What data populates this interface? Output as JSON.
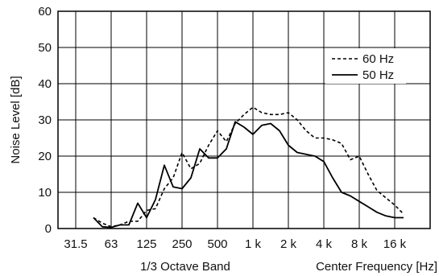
{
  "chart_data": {
    "type": "line",
    "ylabel": "Noise Level [dB]",
    "xlabel_left": "1/3 Octave Band",
    "xlabel_right": "Center Frequency [Hz]",
    "ylim": [
      0,
      60
    ],
    "yticks": [
      0,
      10,
      20,
      30,
      40,
      50,
      60
    ],
    "xlim": [
      0,
      21
    ],
    "xticks": [
      {
        "x": 1,
        "label": "31.5"
      },
      {
        "x": 3,
        "label": "63"
      },
      {
        "x": 5,
        "label": "125"
      },
      {
        "x": 7,
        "label": "250"
      },
      {
        "x": 9,
        "label": "500"
      },
      {
        "x": 11,
        "label": "1 k"
      },
      {
        "x": 13,
        "label": "2 k"
      },
      {
        "x": 15,
        "label": "4 k"
      },
      {
        "x": 17,
        "label": "8 k"
      },
      {
        "x": 19,
        "label": "16 k"
      }
    ],
    "grid": true,
    "legend_position": "top-right",
    "series": [
      {
        "name": "60 Hz",
        "style": "dashed",
        "color": "#000000",
        "x": [
          2,
          2.5,
          3,
          3.5,
          4,
          4.5,
          5,
          5.5,
          6,
          6.5,
          7,
          7.5,
          8,
          8.5,
          9,
          9.5,
          10,
          10.5,
          11,
          11.5,
          12,
          12.5,
          13,
          13.5,
          14,
          14.5,
          15,
          15.5,
          16,
          16.5,
          17,
          17.5,
          18,
          18.5,
          19,
          19.5
        ],
        "values": [
          3,
          1.5,
          0.5,
          1,
          2,
          2,
          5,
          5.5,
          11,
          14,
          21,
          16.5,
          18,
          23,
          27,
          24,
          29,
          31.5,
          33.5,
          32,
          31.5,
          31.5,
          32,
          30,
          27,
          25,
          25,
          24.5,
          23.5,
          19,
          20,
          15,
          10.5,
          8.5,
          6.5,
          4
        ]
      },
      {
        "name": "50 Hz",
        "style": "solid",
        "color": "#000000",
        "x": [
          2,
          2.5,
          3,
          3.5,
          4,
          4.5,
          5,
          5.5,
          6,
          6.5,
          7,
          7.5,
          8,
          8.5,
          9,
          9.5,
          10,
          10.5,
          11,
          11.5,
          12,
          12.5,
          13,
          13.5,
          14,
          14.5,
          15,
          15.5,
          16,
          16.5,
          17,
          17.5,
          18,
          18.5,
          19,
          19.5
        ],
        "values": [
          3,
          0.5,
          0.3,
          1,
          1,
          7,
          3,
          8,
          17.5,
          11.5,
          11,
          14,
          22,
          19.5,
          19.5,
          22,
          29.5,
          28,
          26,
          28.5,
          29,
          27,
          23,
          21,
          20.5,
          20,
          18.5,
          14,
          10,
          9,
          7.5,
          6,
          4.5,
          3.5,
          3,
          3
        ]
      }
    ]
  }
}
